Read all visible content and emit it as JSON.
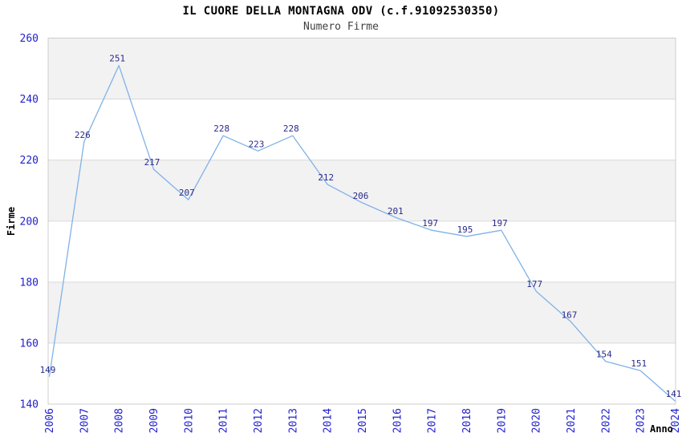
{
  "chart": {
    "title": "IL CUORE DELLA MONTAGNA ODV (c.f.91092530350)",
    "subtitle": "Numero Firme",
    "ylabel": "Firme",
    "xlabel": "Anno"
  },
  "chart_data": {
    "type": "line",
    "title": "IL CUORE DELLA MONTAGNA ODV (c.f.91092530350)",
    "subtitle": "Numero Firme",
    "xlabel": "Anno",
    "ylabel": "Firme",
    "categories": [
      "2006",
      "2007",
      "2008",
      "2009",
      "2010",
      "2011",
      "2012",
      "2013",
      "2014",
      "2015",
      "2016",
      "2017",
      "2018",
      "2019",
      "2020",
      "2021",
      "2022",
      "2023",
      "2024"
    ],
    "values": [
      149,
      226,
      251,
      217,
      207,
      228,
      223,
      228,
      212,
      206,
      201,
      197,
      195,
      197,
      177,
      167,
      154,
      151,
      141
    ],
    "ylim": [
      140,
      260
    ],
    "ytick_step": 20,
    "yticks": [
      140,
      160,
      180,
      200,
      220,
      240,
      260
    ],
    "grid": true,
    "shaded_bands": [
      [
        160,
        180
      ],
      [
        200,
        220
      ],
      [
        240,
        260
      ]
    ],
    "data_labels_shown": true,
    "legend_position": "none",
    "colors": {
      "line": "#7fb2e8",
      "data_label": "#2a2a8c",
      "tick_label": "#2222cc",
      "band_fill": "#f2f2f2",
      "grid_line": "#d9d9d9",
      "plot_border": "#cccccc",
      "title": "#000000",
      "subtitle": "#404040",
      "axis_title": "#000000",
      "background": "#ffffff"
    }
  }
}
